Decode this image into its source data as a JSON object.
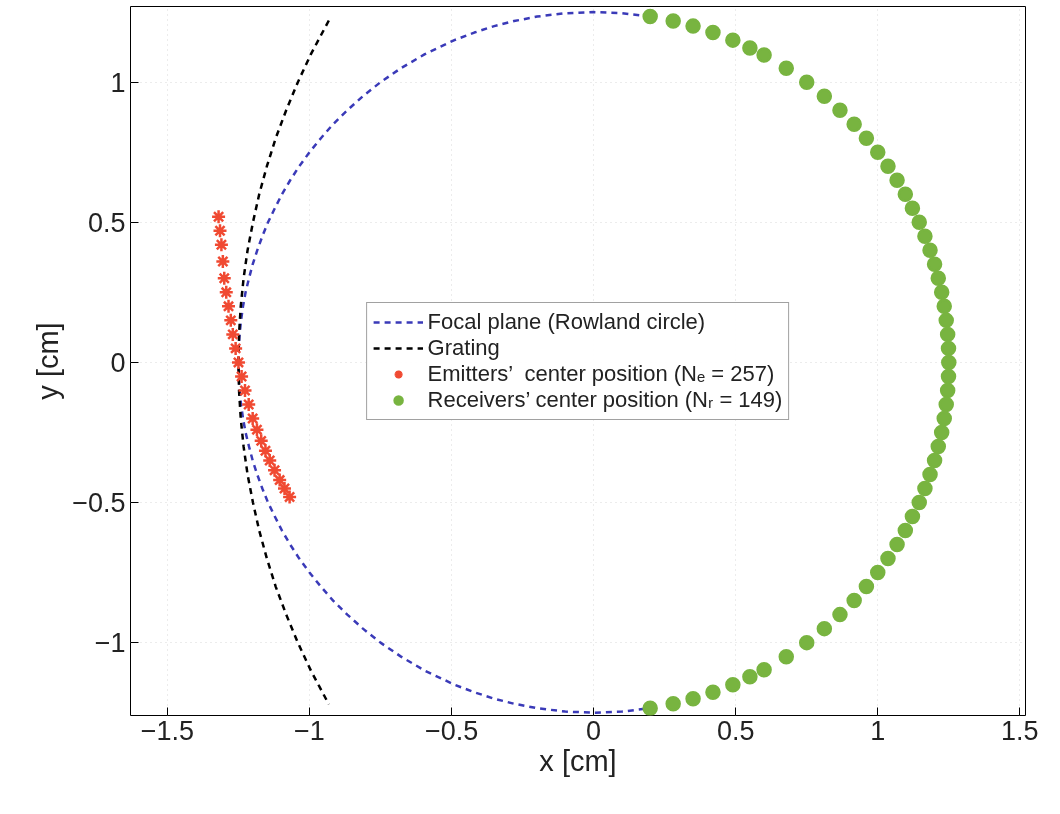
{
  "chart_data": {
    "type": "scatter",
    "xlabel": "x [cm]",
    "ylabel": "y [cm]",
    "xlim": [
      -1.63,
      1.52
    ],
    "ylim": [
      -1.26,
      1.27
    ],
    "xticks": [
      {
        "value": -1.5,
        "label": "−1.5"
      },
      {
        "value": -1,
        "label": "−1"
      },
      {
        "value": -0.5,
        "label": "−0.5"
      },
      0,
      0.5,
      1,
      1.5
    ],
    "yticks": [
      {
        "value": -1,
        "label": "−1"
      },
      {
        "value": -0.5,
        "label": "−0.5"
      },
      0,
      0.5,
      1
    ],
    "grid": true,
    "legend": "center",
    "series": [
      {
        "name": "Focal plane (Rowland circle)",
        "type": "line",
        "line_style": "dashed",
        "color": "#3a3ab8",
        "x": [
          0.199,
          0.1,
          0,
          -0.1,
          -0.199,
          -0.28,
          -0.35,
          -0.42,
          -0.49,
          -0.594,
          -0.678,
          -0.75,
          -0.812,
          -0.867,
          -0.917,
          -0.96,
          -1.0,
          -1.036,
          -1.068,
          -1.097,
          -1.122,
          -1.146,
          -1.166,
          -1.184,
          -1.2,
          -1.213,
          -1.225,
          -1.234,
          -1.241,
          -1.246,
          -1.249,
          -1.25,
          -1.249,
          -1.246,
          -1.241,
          -1.234,
          -1.225,
          -1.213,
          -1.2,
          -1.184,
          -1.166,
          -1.146,
          -1.122,
          -1.097,
          -1.068,
          -1.036,
          -1.0,
          -0.96,
          -0.917,
          -0.867,
          -0.812,
          -0.75,
          -0.678,
          -0.594,
          -0.49,
          -0.42,
          -0.35,
          -0.28,
          -0.199,
          -0.1,
          0,
          0.1,
          0.199
        ],
        "values": [
          1.234,
          1.246,
          1.25,
          1.246,
          1.234,
          1.218,
          1.2,
          1.177,
          1.15,
          1.1,
          1.05,
          1.0,
          0.95,
          0.9,
          0.85,
          0.8,
          0.75,
          0.7,
          0.65,
          0.6,
          0.55,
          0.5,
          0.45,
          0.4,
          0.35,
          0.3,
          0.25,
          0.2,
          0.15,
          0.1,
          0.05,
          0,
          -0.05,
          -0.1,
          -0.15,
          -0.2,
          -0.25,
          -0.3,
          -0.35,
          -0.4,
          -0.45,
          -0.5,
          -0.55,
          -0.6,
          -0.65,
          -0.7,
          -0.75,
          -0.8,
          -0.85,
          -0.9,
          -0.95,
          -1.0,
          -1.05,
          -1.1,
          -1.15,
          -1.177,
          -1.2,
          -1.218,
          -1.234,
          -1.246,
          -1.25,
          -1.246,
          -1.234
        ]
      },
      {
        "name": "Grating",
        "type": "line",
        "line_style": "dashed",
        "color": "#000000",
        "x": [
          -0.932,
          -0.995,
          -1.041,
          -1.082,
          -1.119,
          -1.15,
          -1.177,
          -1.199,
          -1.218,
          -1.232,
          -1.242,
          -1.248,
          -1.25,
          -1.248,
          -1.242,
          -1.232,
          -1.218,
          -1.199,
          -1.177,
          -1.15,
          -1.119,
          -1.082,
          -1.041,
          -0.995,
          -0.932
        ],
        "values": [
          1.22,
          1.1,
          1.0,
          0.9,
          0.8,
          0.7,
          0.6,
          0.5,
          0.4,
          0.3,
          0.2,
          0.1,
          0,
          -0.1,
          -0.2,
          -0.3,
          -0.4,
          -0.5,
          -0.6,
          -0.7,
          -0.8,
          -0.9,
          -1.0,
          -1.1,
          -1.22
        ]
      },
      {
        "name": "Emitters’  center position (Nₑ = 257)",
        "marker": "cross",
        "color": "#f04a32",
        "x": [
          -1.32,
          -1.315,
          -1.31,
          -1.305,
          -1.3,
          -1.293,
          -1.285,
          -1.277,
          -1.27,
          -1.26,
          -1.25,
          -1.239,
          -1.227,
          -1.214,
          -1.2,
          -1.185,
          -1.17,
          -1.155,
          -1.14,
          -1.123,
          -1.105,
          -1.088,
          -1.07
        ],
        "values": [
          0.52,
          0.47,
          0.42,
          0.36,
          0.3,
          0.25,
          0.2,
          0.15,
          0.1,
          0.05,
          0,
          -0.05,
          -0.1,
          -0.15,
          -0.2,
          -0.24,
          -0.28,
          -0.315,
          -0.35,
          -0.385,
          -0.42,
          -0.45,
          -0.48
        ]
      },
      {
        "name": "Receivers’ center position (Nᵣ = 149)",
        "marker": "circle",
        "color": "#78b440",
        "x": [
          0.199,
          0.28,
          0.35,
          0.42,
          0.49,
          0.55,
          0.6,
          0.678,
          0.75,
          0.812,
          0.867,
          0.917,
          0.96,
          1.0,
          1.036,
          1.068,
          1.097,
          1.122,
          1.146,
          1.166,
          1.184,
          1.2,
          1.213,
          1.225,
          1.234,
          1.241,
          1.246,
          1.249,
          1.25,
          1.249,
          1.246,
          1.241,
          1.234,
          1.225,
          1.213,
          1.2,
          1.184,
          1.166,
          1.146,
          1.122,
          1.097,
          1.068,
          1.036,
          1.0,
          0.96,
          0.917,
          0.867,
          0.812,
          0.75,
          0.678,
          0.6,
          0.55,
          0.49,
          0.42,
          0.35,
          0.28,
          0.199
        ],
        "values": [
          1.234,
          1.218,
          1.2,
          1.177,
          1.15,
          1.122,
          1.097,
          1.05,
          1.0,
          0.95,
          0.9,
          0.85,
          0.8,
          0.75,
          0.7,
          0.65,
          0.6,
          0.55,
          0.5,
          0.45,
          0.4,
          0.35,
          0.3,
          0.25,
          0.2,
          0.15,
          0.1,
          0.05,
          0,
          -0.05,
          -0.1,
          -0.15,
          -0.2,
          -0.25,
          -0.3,
          -0.35,
          -0.4,
          -0.45,
          -0.5,
          -0.55,
          -0.6,
          -0.65,
          -0.7,
          -0.75,
          -0.8,
          -0.85,
          -0.9,
          -0.95,
          -1.0,
          -1.05,
          -1.097,
          -1.122,
          -1.15,
          -1.177,
          -1.2,
          -1.218,
          -1.234
        ]
      }
    ]
  }
}
